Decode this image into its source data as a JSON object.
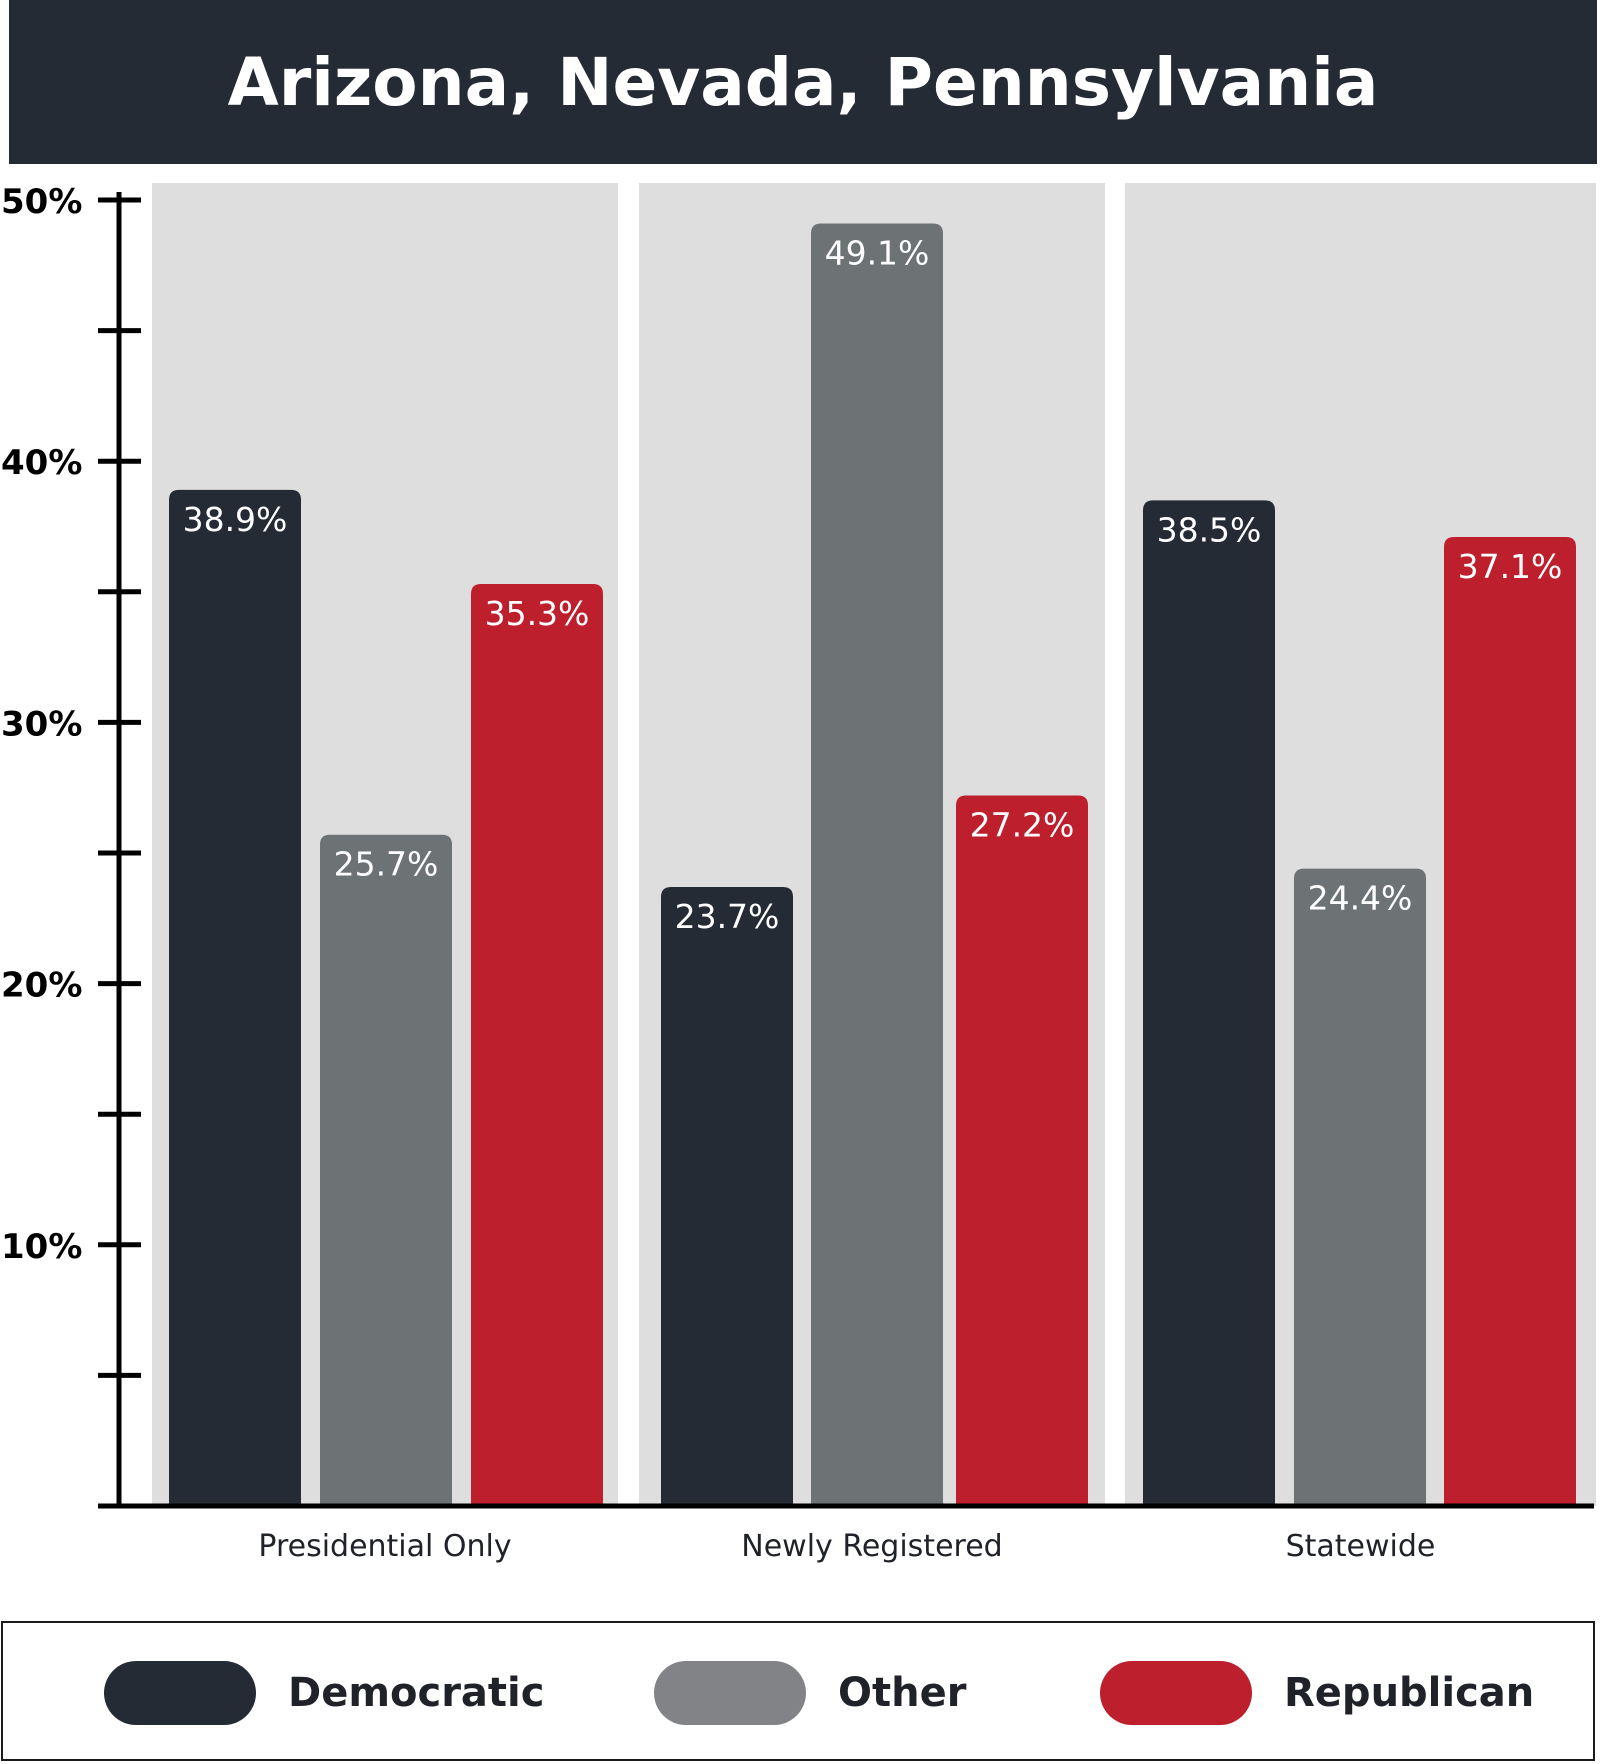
{
  "chart_data": {
    "type": "bar",
    "title": "Arizona, Nevada, Pennsylvania",
    "categories": [
      "Presidential Only",
      "Newly Registered",
      "Statewide"
    ],
    "series": [
      {
        "name": "Democratic",
        "color": "#252b35",
        "values": [
          38.9,
          23.7,
          38.5
        ],
        "labels": [
          "38.9%",
          "23.7%",
          "38.5%"
        ]
      },
      {
        "name": "Other",
        "color": "#6d7275",
        "values": [
          25.7,
          49.1,
          24.4
        ],
        "labels": [
          "25.7%",
          "49.1%",
          "24.4%"
        ]
      },
      {
        "name": "Republican",
        "color": "#bd1f2d",
        "values": [
          35.3,
          27.2,
          37.1
        ],
        "labels": [
          "35.3%",
          "27.2%",
          "37.1%"
        ]
      }
    ],
    "ylim": [
      0,
      50
    ],
    "yticks": [
      10,
      20,
      30,
      40,
      50
    ],
    "ytick_labels": [
      "10%",
      "20%",
      "30%",
      "40%",
      "50%"
    ],
    "grid": false,
    "legend_position": "bottom",
    "legend_swatch_colors": [
      "#252b35",
      "#818386",
      "#bd1f2d"
    ],
    "panel_color": "#dedede"
  }
}
